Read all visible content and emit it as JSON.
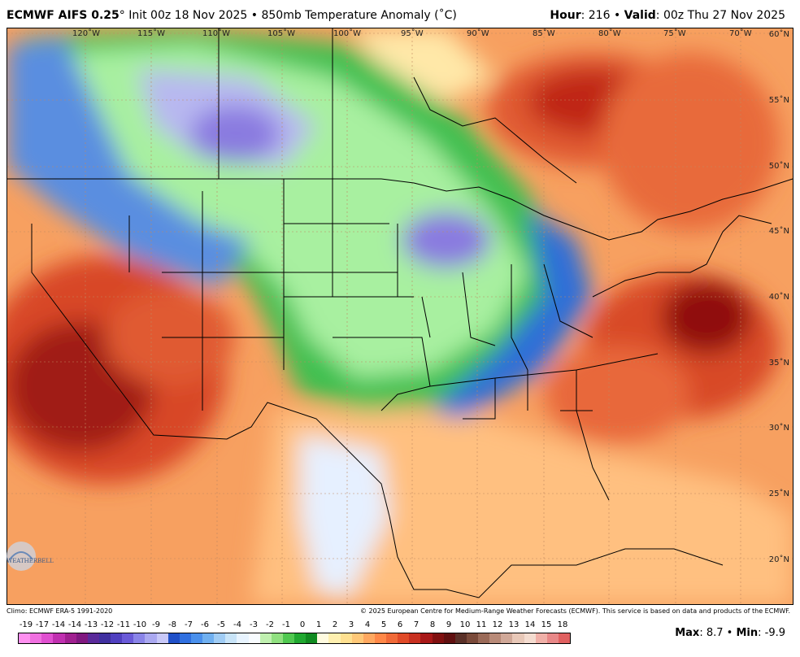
{
  "header": {
    "model": "ECMWF AIFS 0.25",
    "deg": "°",
    "init": " Init 00z 18 Nov 2025 • 850mb Temperature Anomaly (",
    "unit": "˚C)",
    "hour_label": "Hour",
    "hour_value": ": 216 • ",
    "valid_label": "Valid",
    "valid_value": ": 00z Thu 27 Nov 2025"
  },
  "map": {
    "lon_labels": [
      "120˚W",
      "115˚W",
      "110˚W",
      "105˚W",
      "100˚W",
      "95˚W",
      "90˚W",
      "85˚W",
      "80˚W",
      "75˚W",
      "70˚W"
    ],
    "lat_labels": [
      "60˚N",
      "55˚N",
      "50˚N",
      "45˚N",
      "40˚N",
      "35˚N",
      "30˚N",
      "25˚N",
      "20˚N"
    ],
    "logo_text": "WEATHERBELL"
  },
  "footer": {
    "climo": "Climo: ECMWF ERA-5 1991-2020",
    "copyright": "© 2025 European Centre for Medium-Range Weather Forecasts (ECMWF). This service is based on data and products of the ECMWF.",
    "max_label": "Max",
    "max_value": ": 8.7 • ",
    "min_label": "Min",
    "min_value": ": -9.9"
  },
  "colorbar": {
    "ticks": [
      "-19",
      "-17",
      "-14",
      "-14",
      "-13",
      "-12",
      "-11",
      "-10",
      "-9",
      "-8",
      "-7",
      "-6",
      "-5",
      "-4",
      "-3",
      "-2",
      "-1",
      "0",
      "1",
      "2",
      "3",
      "4",
      "5",
      "6",
      "7",
      "8",
      "9",
      "10",
      "11",
      "12",
      "13",
      "14",
      "15",
      "18"
    ],
    "colors": [
      "#ff90f0",
      "#f070e0",
      "#e050d0",
      "#c030b0",
      "#a02090",
      "#801880",
      "#5a2a9a",
      "#4030a0",
      "#5040c0",
      "#6a5ad8",
      "#8a84e8",
      "#aaa8f0",
      "#c8c8f8",
      "#2050c8",
      "#3070e0",
      "#4a90ec",
      "#70b0f0",
      "#a0ccf4",
      "#c8e4f8",
      "#e8f4ff",
      "#f8fcff",
      "#c0f0b0",
      "#90e080",
      "#50c850",
      "#20a830",
      "#108a20",
      "#fffbe0",
      "#fff0b0",
      "#ffe090",
      "#ffc878",
      "#ffa860",
      "#ff8848",
      "#f06a38",
      "#e04a28",
      "#c83020",
      "#a81818",
      "#801010",
      "#601010",
      "#5a3028",
      "#7a4a3a",
      "#9a6a58",
      "#b88a78",
      "#d0a898",
      "#e8c8b8",
      "#f4dcd0",
      "#f0b0a8",
      "#e88888",
      "#e06060"
    ]
  }
}
